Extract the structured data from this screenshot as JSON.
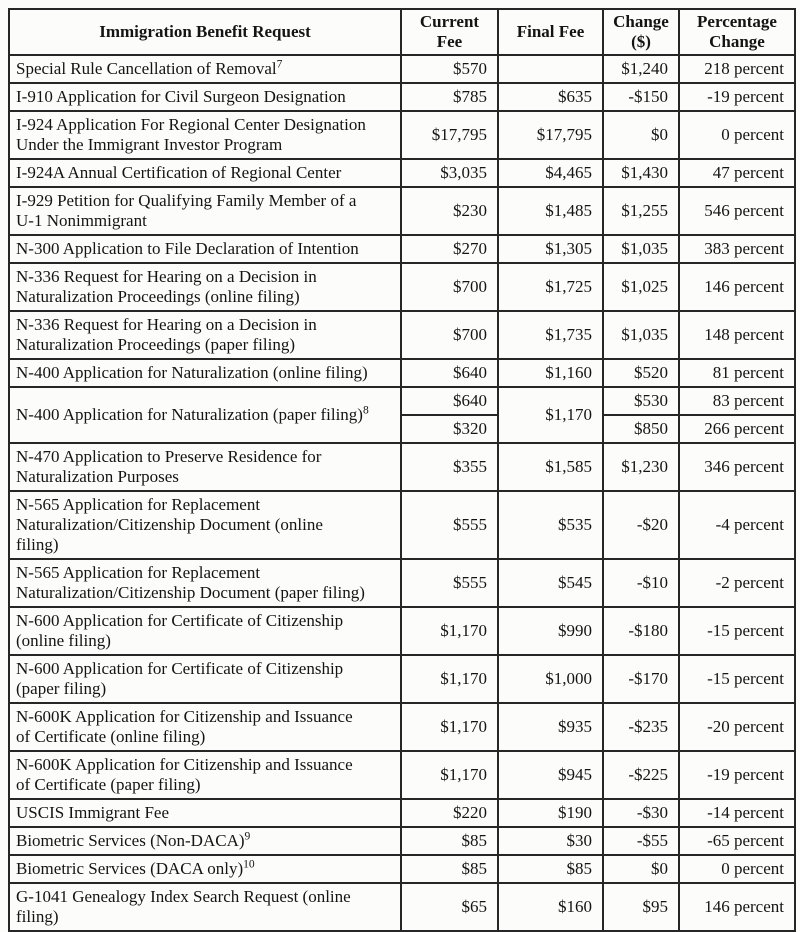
{
  "page": {
    "background_color": "#fcfcfb",
    "border_color": "#262626",
    "text_color": "#141414"
  },
  "table": {
    "header": {
      "benefit": "Immigration Benefit Request",
      "current": "Current\nFee",
      "final": "Final Fee",
      "change": "Change\n($)",
      "percentage": "Percentage\nChange"
    },
    "rows": [
      {
        "name": "Special Rule Cancellation of Removal",
        "sup": "7",
        "current": "$570",
        "final": "",
        "change": "$1,240",
        "pct": "218 percent"
      },
      {
        "name": "I-910 Application for Civil Surgeon Designation",
        "current": "$785",
        "final": "$635",
        "change": "-$150",
        "pct": "-19 percent"
      },
      {
        "name": "I-924 Application For Regional Center Designation\nUnder the Immigrant Investor Program",
        "current": "$17,795",
        "final": "$17,795",
        "change": "$0",
        "pct": "0 percent"
      },
      {
        "name": "I-924A Annual Certification of Regional Center",
        "current": "$3,035",
        "final": "$4,465",
        "change": "$1,430",
        "pct": "47 percent"
      },
      {
        "name": "I-929 Petition for Qualifying Family Member of a\nU-1 Nonimmigrant",
        "current": "$230",
        "final": "$1,485",
        "change": "$1,255",
        "pct": "546 percent"
      },
      {
        "name": "N-300 Application to File Declaration of Intention",
        "current": "$270",
        "final": "$1,305",
        "change": "$1,035",
        "pct": "383 percent"
      },
      {
        "name": "N-336 Request for Hearing on a Decision in\nNaturalization Proceedings (online filing)",
        "current": "$700",
        "final": "$1,725",
        "change": "$1,025",
        "pct": "146 percent"
      },
      {
        "name": "N-336 Request for Hearing on a Decision in\nNaturalization Proceedings (paper filing)",
        "current": "$700",
        "final": "$1,735",
        "change": "$1,035",
        "pct": "148 percent"
      },
      {
        "name": "N-400 Application for Naturalization (online filing)",
        "current": "$640",
        "final": "$1,160",
        "change": "$520",
        "pct": "81 percent"
      },
      {
        "name": "N-400 Application for Naturalization (paper filing)",
        "sup": "8",
        "current_1": "$640",
        "current_2": "$320",
        "final": "$1,170",
        "change_1": "$530",
        "change_2": "$850",
        "pct_1": "83 percent",
        "pct_2": "266 percent"
      },
      {
        "name": "N-470 Application to Preserve Residence for\nNaturalization Purposes",
        "current": "$355",
        "final": "$1,585",
        "change": "$1,230",
        "pct": "346 percent"
      },
      {
        "name": "N-565 Application for Replacement\nNaturalization/Citizenship Document (online\nfiling)",
        "current": "$555",
        "final": "$535",
        "change": "-$20",
        "pct": "-4 percent"
      },
      {
        "name": "N-565 Application for Replacement\nNaturalization/Citizenship Document (paper filing)",
        "current": "$555",
        "final": "$545",
        "change": "-$10",
        "pct": "-2 percent"
      },
      {
        "name": "N-600 Application for Certificate of Citizenship\n(online filing)",
        "current": "$1,170",
        "final": "$990",
        "change": "-$180",
        "pct": "-15 percent"
      },
      {
        "name": "N-600 Application for Certificate of Citizenship\n(paper filing)",
        "current": "$1,170",
        "final": "$1,000",
        "change": "-$170",
        "pct": "-15 percent"
      },
      {
        "name": "N-600K Application for Citizenship and Issuance\nof Certificate (online filing)",
        "current": "$1,170",
        "final": "$935",
        "change": "-$235",
        "pct": "-20 percent"
      },
      {
        "name": "N-600K Application for Citizenship and Issuance\nof Certificate (paper filing)",
        "current": "$1,170",
        "final": "$945",
        "change": "-$225",
        "pct": "-19 percent"
      },
      {
        "name": "USCIS Immigrant Fee",
        "current": "$220",
        "final": "$190",
        "change": "-$30",
        "pct": "-14 percent"
      },
      {
        "name": "Biometric Services (Non-DACA)",
        "sup": "9",
        "current": "$85",
        "final": "$30",
        "change": "-$55",
        "pct": "-65 percent"
      },
      {
        "name": "Biometric Services (DACA only)",
        "sup": "10",
        "current": "$85",
        "final": "$85",
        "change": "$0",
        "pct": "0 percent"
      },
      {
        "name": "G-1041 Genealogy Index Search Request (online\nfiling)",
        "current": "$65",
        "final": "$160",
        "change": "$95",
        "pct": "146 percent"
      }
    ]
  }
}
